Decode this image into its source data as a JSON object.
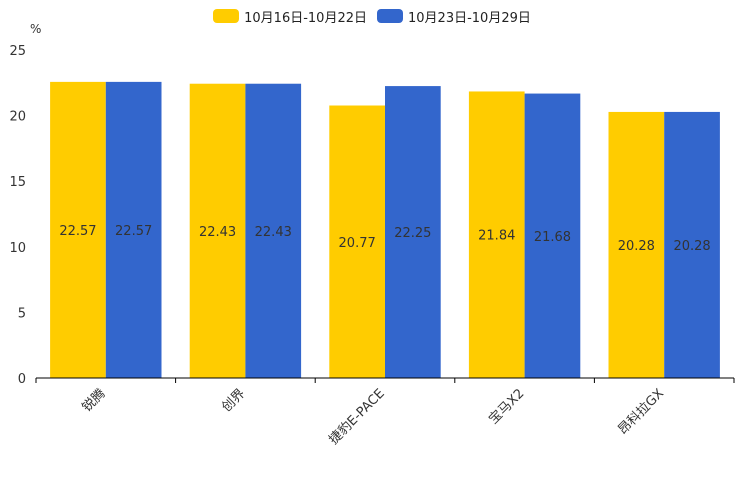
{
  "chart_data": {
    "type": "bar",
    "title": "",
    "xlabel": "",
    "ylabel": "%",
    "ylim": [
      0,
      25
    ],
    "yticks": [
      0,
      5,
      10,
      15,
      20,
      25
    ],
    "legend_position": "top-center",
    "categories": [
      "锐腾",
      "创界",
      "捷豹E-PACE",
      "宝马X2",
      "昂科拉GX"
    ],
    "series": [
      {
        "name": "10月16日-10月22日",
        "color": "#FFCC00",
        "values": [
          22.57,
          22.43,
          20.77,
          21.84,
          20.28
        ]
      },
      {
        "name": "10月23日-10月29日",
        "color": "#3366CC",
        "values": [
          22.57,
          22.43,
          22.25,
          21.68,
          20.28
        ]
      }
    ]
  }
}
